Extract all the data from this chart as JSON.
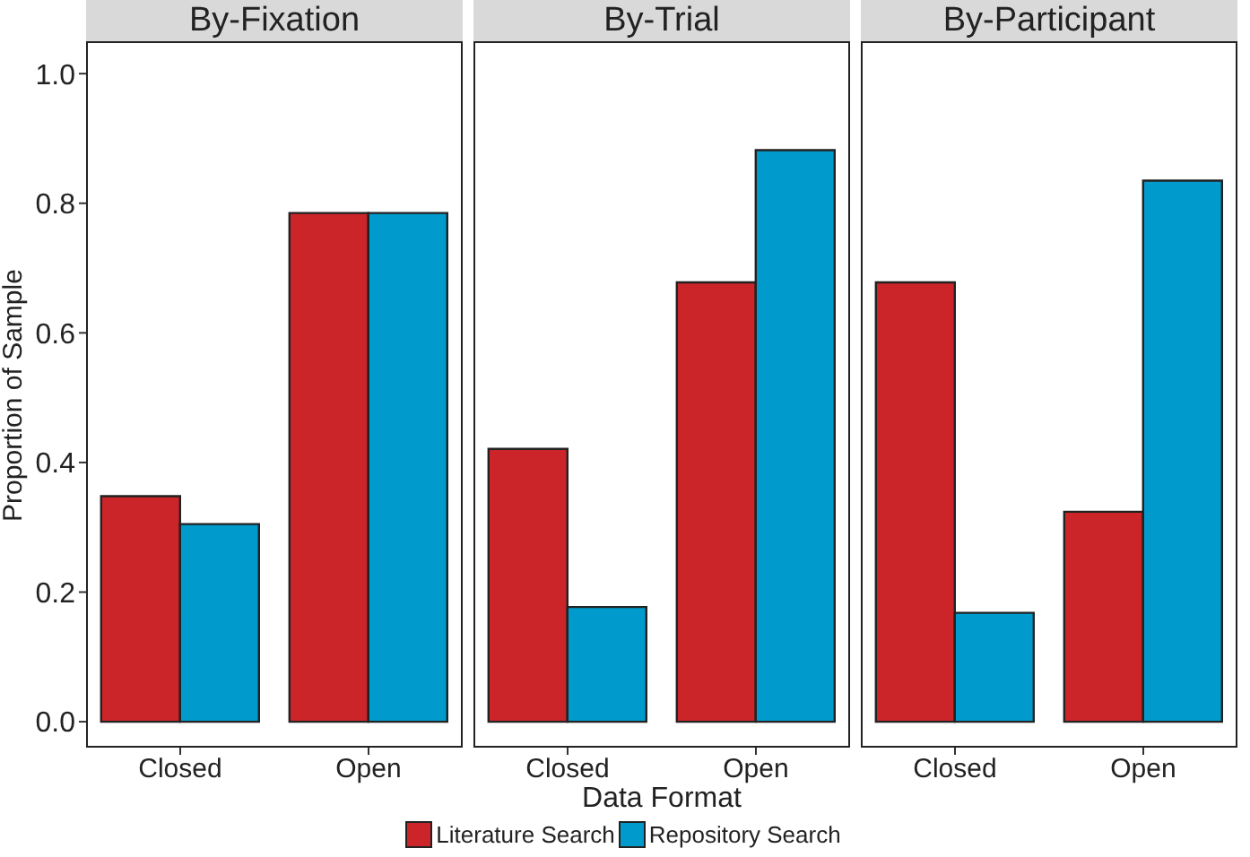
{
  "chart_data": [
    {
      "type": "bar",
      "title": "By-Fixation",
      "ylabel": "Proportion of Sample",
      "categories": [
        "Closed",
        "Open"
      ],
      "series": [
        {
          "name": "Literature Search",
          "color": "#cc2529",
          "values": [
            0.348,
            0.785
          ]
        },
        {
          "name": "Repository Search",
          "color": "#009bcc",
          "values": [
            0.305,
            0.785
          ]
        }
      ],
      "ylim": [
        -0.04,
        1.05
      ],
      "yticks": [
        {
          "value": 0,
          "label": "0.0"
        },
        {
          "value": 0.2,
          "label": "0.2"
        },
        {
          "value": 0.4,
          "label": "0.4"
        },
        {
          "value": 0.6,
          "label": "0.6"
        },
        {
          "value": 0.8,
          "label": "0.8"
        },
        {
          "value": 1,
          "label": "1.0"
        }
      ],
      "grid": false,
      "legend": "bottom"
    },
    {
      "type": "bar",
      "title": "By-Trial",
      "xlabel": "Data Format",
      "categories": [
        "Closed",
        "Open"
      ],
      "series": [
        {
          "color": "#cc2529",
          "values": [
            0.421,
            0.678
          ]
        },
        {
          "color": "#009bcc",
          "values": [
            0.177,
            0.882
          ]
        }
      ],
      "ylim": [
        -0.04,
        1.05
      ],
      "grid": false,
      "tick_labels": "x"
    },
    {
      "type": "bar",
      "title": "By-Participant",
      "categories": [
        "Closed",
        "Open"
      ],
      "series": [
        {
          "color": "#cc2529",
          "values": [
            0.678,
            0.324
          ]
        },
        {
          "color": "#009bcc",
          "values": [
            0.168,
            0.835
          ]
        }
      ],
      "ylim": [
        -0.04,
        1.05
      ],
      "grid": false,
      "tick_labels": "x"
    }
  ]
}
